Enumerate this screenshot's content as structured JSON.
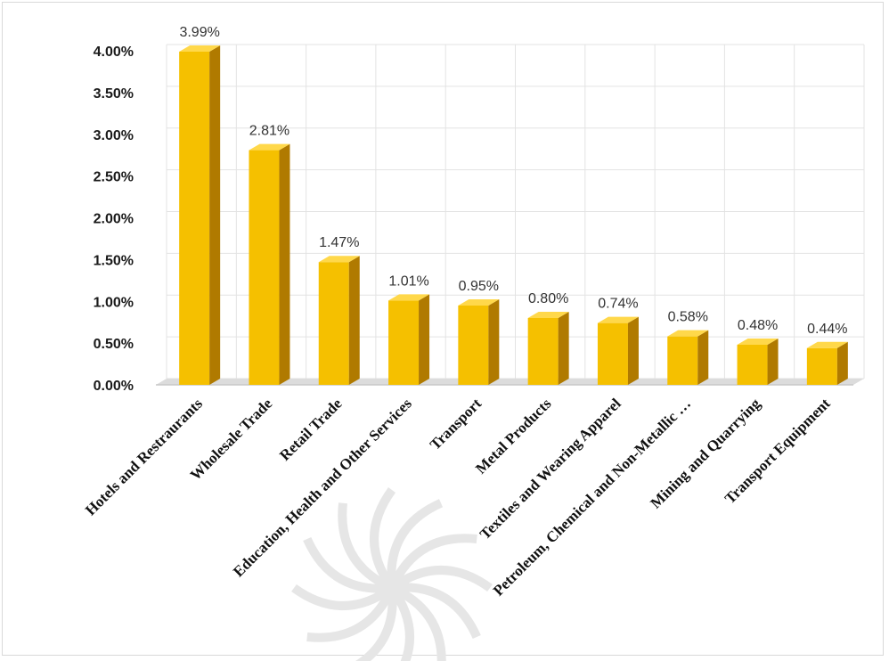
{
  "chart_data": {
    "type": "bar",
    "categories": [
      "Hotels and Restraurants",
      "Wholesale Trade",
      "Retail Trade",
      "Education, Health and Other Services",
      "Transport",
      "Metal Products",
      "Textiles and Wearing Apparel",
      "Petroleum, Chemical and Non-Metallic …",
      "Mining and Quarrying",
      "Transport Equipment"
    ],
    "values": [
      3.99,
      2.81,
      1.47,
      1.01,
      0.95,
      0.8,
      0.74,
      0.58,
      0.48,
      0.44
    ],
    "data_labels": [
      "3.99%",
      "2.81%",
      "1.47%",
      "1.01%",
      "0.95%",
      "0.80%",
      "0.74%",
      "0.58%",
      "0.48%",
      "0.44%"
    ],
    "y_ticks": [
      {
        "value": 0.0,
        "label": "0.00%"
      },
      {
        "value": 0.5,
        "label": "0.50%"
      },
      {
        "value": 1.0,
        "label": "1.00%"
      },
      {
        "value": 1.5,
        "label": "1.50%"
      },
      {
        "value": 2.0,
        "label": "2.00%"
      },
      {
        "value": 2.5,
        "label": "2.50%"
      },
      {
        "value": 3.0,
        "label": "3.00%"
      },
      {
        "value": 3.5,
        "label": "3.50%"
      },
      {
        "value": 4.0,
        "label": "4.00%"
      }
    ],
    "ylim": [
      0,
      4.0
    ],
    "title": "",
    "xlabel": "",
    "ylabel": "",
    "grid": true,
    "legend": "none",
    "bar_color": "#F5C000",
    "bar_side_color": "#B07A00",
    "bar_top_color": "#FFD84A"
  }
}
